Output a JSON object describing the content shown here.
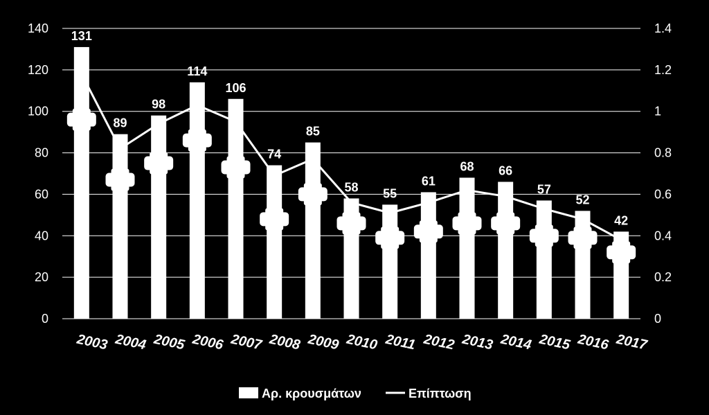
{
  "chart_data": {
    "type": "bar",
    "categories": [
      "2003",
      "2004",
      "2005",
      "2006",
      "2007",
      "2008",
      "2009",
      "2010",
      "2011",
      "2012",
      "2013",
      "2014",
      "2015",
      "2016",
      "2017"
    ],
    "series": [
      {
        "name": "Αρ. κρουσμάτων",
        "type": "bar",
        "axis": "left",
        "values": [
          131,
          89,
          98,
          114,
          106,
          74,
          85,
          58,
          55,
          61,
          68,
          66,
          57,
          52,
          42
        ],
        "data_labels": [
          "131",
          "89",
          "98",
          "114",
          "106",
          "74",
          "85",
          "58",
          "55",
          "61",
          "68",
          "66",
          "57",
          "52",
          "42"
        ]
      },
      {
        "name": "Επίπτωση",
        "type": "line",
        "axis": "right",
        "values": [
          1.18,
          0.82,
          0.94,
          1.03,
          0.95,
          0.69,
          0.77,
          0.56,
          0.51,
          0.56,
          0.62,
          0.59,
          0.53,
          0.48,
          0.38
        ]
      }
    ],
    "markers": {
      "note": "white square markers on bars (left-axis units)",
      "values": [
        96,
        67,
        75,
        86,
        73,
        48,
        60,
        46,
        39,
        42,
        46,
        46,
        40,
        39,
        32
      ]
    },
    "y_left": {
      "ticks": [
        "0",
        "20",
        "40",
        "60",
        "80",
        "100",
        "120",
        "140"
      ],
      "ylim": [
        0,
        140
      ]
    },
    "y_right": {
      "ticks": [
        "0",
        "0.2",
        "0.4",
        "0.6",
        "0.8",
        "1",
        "1.2",
        "1.4"
      ],
      "ylim": [
        0,
        1.4
      ]
    },
    "grid": true,
    "legend_position": "bottom",
    "colors": {
      "background": "#000000",
      "bars": "#ffffff",
      "line": "#ffffff",
      "grid": "#ffffff",
      "text": "#ffffff"
    }
  }
}
